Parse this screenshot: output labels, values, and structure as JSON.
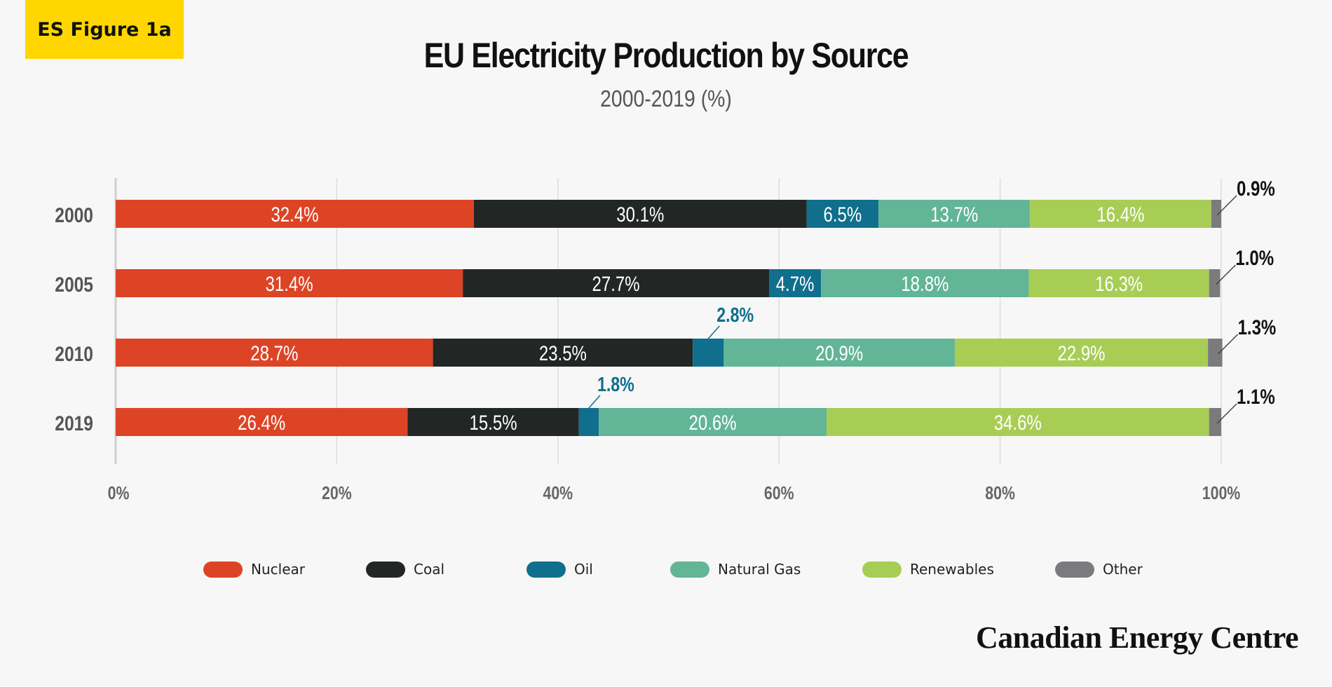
{
  "badge": "ES Figure 1a",
  "brand": "Canadian Energy Centre",
  "chart_data": {
    "type": "bar",
    "orientation": "horizontal",
    "stacked": true,
    "title": "EU Electricity Production by Source",
    "subtitle": "2000-2019 (%)",
    "categories": [
      "2000",
      "2005",
      "2010",
      "2019"
    ],
    "x_ticks": [
      "0%",
      "20%",
      "40%",
      "60%",
      "80%",
      "100%"
    ],
    "xlim": [
      0,
      100
    ],
    "grid": true,
    "legend_position": "bottom",
    "series": [
      {
        "name": "Nuclear",
        "color": "#dd4426",
        "values": [
          32.4,
          31.4,
          28.7,
          26.4
        ],
        "labels": [
          "32.4%",
          "31.4%",
          "28.7%",
          "26.4%"
        ]
      },
      {
        "name": "Coal",
        "color": "#222726",
        "values": [
          30.1,
          27.7,
          23.5,
          15.5
        ],
        "labels": [
          "30.1%",
          "27.7%",
          "23.5%",
          "15.5%"
        ]
      },
      {
        "name": "Oil",
        "color": "#0f6f8c",
        "values": [
          6.5,
          4.7,
          2.8,
          1.8
        ],
        "labels": [
          "6.5%",
          "4.7%",
          "2.8%",
          "1.8%"
        ]
      },
      {
        "name": "Natural Gas",
        "color": "#62b597",
        "values": [
          13.7,
          18.8,
          20.9,
          20.6
        ],
        "labels": [
          "13.7%",
          "18.8%",
          "20.9%",
          "20.6%"
        ]
      },
      {
        "name": "Renewables",
        "color": "#a7cd55",
        "values": [
          16.4,
          16.3,
          22.9,
          34.6
        ],
        "labels": [
          "16.4%",
          "16.3%",
          "22.9%",
          "34.6%"
        ]
      },
      {
        "name": "Other",
        "color": "#7b7b7d",
        "values": [
          0.9,
          1.0,
          1.3,
          1.1
        ],
        "labels": [
          "0.9%",
          "1.0%",
          "1.3%",
          "1.1%"
        ]
      }
    ]
  }
}
